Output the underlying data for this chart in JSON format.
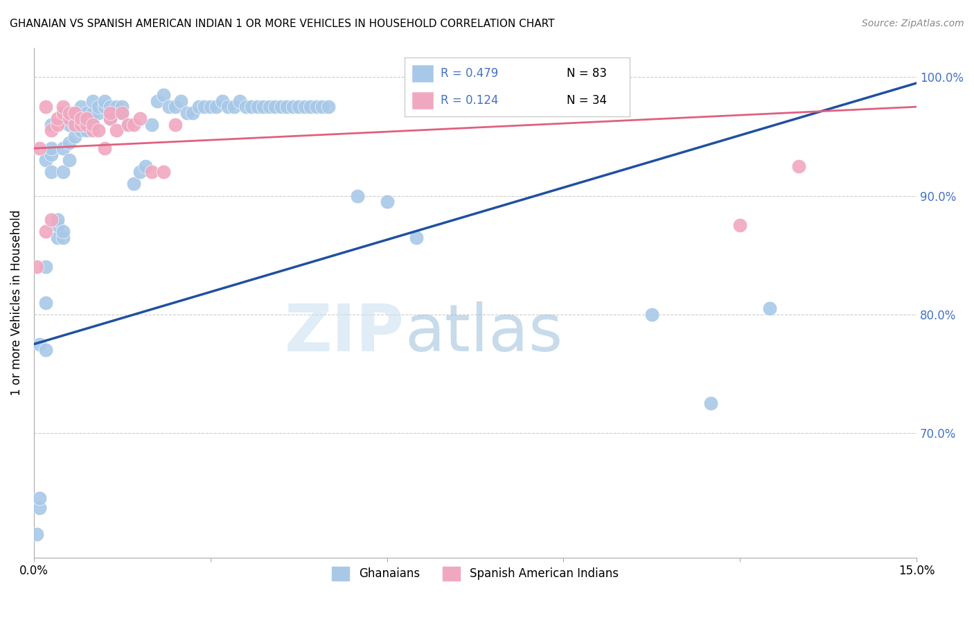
{
  "title": "GHANAIAN VS SPANISH AMERICAN INDIAN 1 OR MORE VEHICLES IN HOUSEHOLD CORRELATION CHART",
  "source": "Source: ZipAtlas.com",
  "ylabel": "1 or more Vehicles in Household",
  "ytick_labels": [
    "100.0%",
    "90.0%",
    "80.0%",
    "70.0%"
  ],
  "ytick_positions": [
    1.0,
    0.9,
    0.8,
    0.7
  ],
  "xlim": [
    0.0,
    0.15
  ],
  "ylim": [
    0.595,
    1.025
  ],
  "legend_blue_R": "R = 0.479",
  "legend_blue_N": "N = 83",
  "legend_pink_R": "R = 0.124",
  "legend_pink_N": "N = 34",
  "legend_label_blue": "Ghanaians",
  "legend_label_pink": "Spanish American Indians",
  "color_blue": "#a8c8e8",
  "color_pink": "#f0a8c0",
  "color_blue_line": "#2050a0",
  "color_pink_line": "#e06080",
  "color_text_blue": "#4472c4",
  "color_text_pink": "#e06080",
  "blue_x": [
    0.0005,
    0.001,
    0.001,
    0.001,
    0.002,
    0.002,
    0.002,
    0.002,
    0.003,
    0.003,
    0.003,
    0.003,
    0.004,
    0.004,
    0.004,
    0.005,
    0.005,
    0.005,
    0.005,
    0.006,
    0.006,
    0.006,
    0.007,
    0.007,
    0.007,
    0.008,
    0.008,
    0.008,
    0.009,
    0.009,
    0.01,
    0.01,
    0.01,
    0.011,
    0.011,
    0.012,
    0.012,
    0.013,
    0.013,
    0.014,
    0.015,
    0.015,
    0.016,
    0.017,
    0.018,
    0.019,
    0.02,
    0.021,
    0.022,
    0.023,
    0.024,
    0.025,
    0.026,
    0.027,
    0.028,
    0.029,
    0.03,
    0.031,
    0.032,
    0.033,
    0.034,
    0.035,
    0.036,
    0.037,
    0.038,
    0.039,
    0.04,
    0.041,
    0.042,
    0.043,
    0.044,
    0.045,
    0.046,
    0.047,
    0.048,
    0.049,
    0.05,
    0.055,
    0.06,
    0.065,
    0.105,
    0.115,
    0.125
  ],
  "blue_y": [
    0.615,
    0.637,
    0.645,
    0.775,
    0.77,
    0.81,
    0.84,
    0.93,
    0.92,
    0.935,
    0.94,
    0.96,
    0.865,
    0.875,
    0.88,
    0.865,
    0.87,
    0.92,
    0.94,
    0.93,
    0.945,
    0.96,
    0.95,
    0.96,
    0.97,
    0.955,
    0.965,
    0.975,
    0.955,
    0.97,
    0.96,
    0.97,
    0.98,
    0.97,
    0.975,
    0.975,
    0.98,
    0.965,
    0.975,
    0.975,
    0.97,
    0.975,
    0.96,
    0.91,
    0.92,
    0.925,
    0.96,
    0.98,
    0.985,
    0.975,
    0.975,
    0.98,
    0.97,
    0.97,
    0.975,
    0.975,
    0.975,
    0.975,
    0.98,
    0.975,
    0.975,
    0.98,
    0.975,
    0.975,
    0.975,
    0.975,
    0.975,
    0.975,
    0.975,
    0.975,
    0.975,
    0.975,
    0.975,
    0.975,
    0.975,
    0.975,
    0.975,
    0.9,
    0.895,
    0.865,
    0.8,
    0.725,
    0.805
  ],
  "pink_x": [
    0.0005,
    0.001,
    0.002,
    0.002,
    0.003,
    0.003,
    0.004,
    0.004,
    0.005,
    0.005,
    0.006,
    0.006,
    0.007,
    0.007,
    0.008,
    0.008,
    0.009,
    0.009,
    0.01,
    0.01,
    0.011,
    0.012,
    0.013,
    0.013,
    0.014,
    0.015,
    0.016,
    0.017,
    0.018,
    0.02,
    0.022,
    0.024,
    0.12,
    0.13
  ],
  "pink_y": [
    0.84,
    0.94,
    0.975,
    0.87,
    0.88,
    0.955,
    0.96,
    0.965,
    0.97,
    0.975,
    0.965,
    0.97,
    0.96,
    0.97,
    0.96,
    0.965,
    0.96,
    0.965,
    0.955,
    0.96,
    0.955,
    0.94,
    0.965,
    0.97,
    0.955,
    0.97,
    0.96,
    0.96,
    0.965,
    0.92,
    0.92,
    0.96,
    0.875,
    0.925
  ],
  "blue_line_x": [
    0.0,
    0.15
  ],
  "blue_line_y": [
    0.775,
    0.995
  ],
  "pink_line_x": [
    0.0,
    0.15
  ],
  "pink_line_y": [
    0.94,
    0.975
  ]
}
